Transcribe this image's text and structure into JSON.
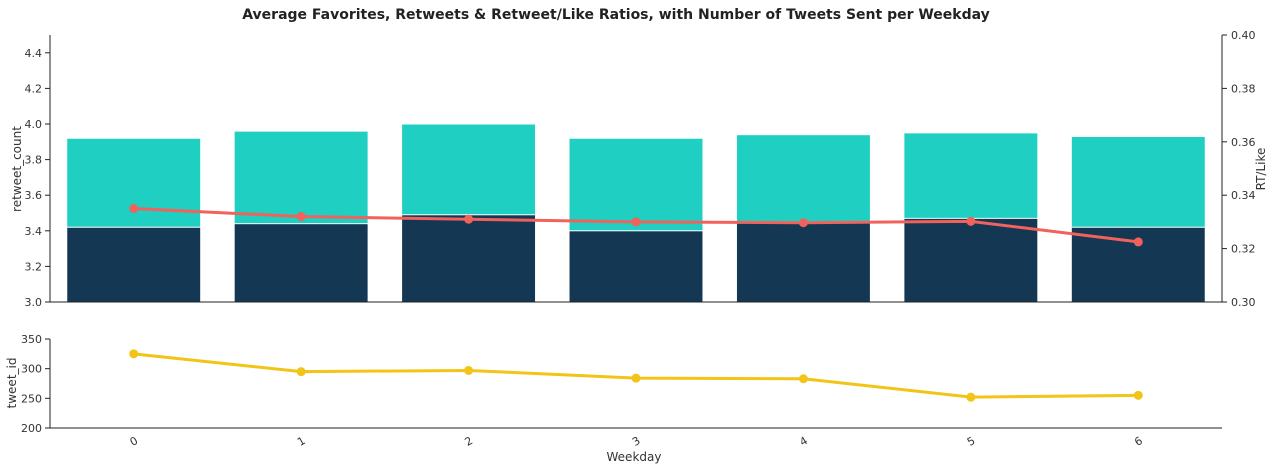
{
  "chart_data": [
    {
      "type": "bar",
      "title": "Average Favorites, Retweets & Retweet/Like Ratios, with Number of Tweets Sent per Weekday",
      "categories": [
        "0",
        "1",
        "2",
        "3",
        "4",
        "5",
        "6"
      ],
      "ylabel": "retweet_count",
      "ylim": [
        3.0,
        4.5
      ],
      "yticks": [
        "3.0",
        "3.2",
        "3.4",
        "3.6",
        "3.8",
        "4.0",
        "4.2",
        "4.4"
      ],
      "y2label": "RT/Like",
      "y2lim": [
        0.3,
        0.4
      ],
      "y2ticks": [
        "0.30",
        "0.32",
        "0.34",
        "0.36",
        "0.38",
        "0.40"
      ],
      "grid": false,
      "series": [
        {
          "kind": "bar",
          "axis": "left",
          "color": "#1ecfc2",
          "values": [
            3.92,
            3.96,
            4.0,
            3.92,
            3.94,
            3.95,
            3.93
          ]
        },
        {
          "kind": "bar",
          "axis": "left",
          "color": "#143753",
          "values": [
            3.42,
            3.44,
            3.49,
            3.4,
            3.45,
            3.47,
            3.42
          ]
        },
        {
          "kind": "line",
          "axis": "right",
          "color": "#f0625b",
          "values": [
            0.335,
            0.332,
            0.331,
            0.33,
            0.3297,
            0.3302,
            0.3225
          ]
        }
      ]
    },
    {
      "type": "line",
      "categories": [
        "0",
        "1",
        "2",
        "3",
        "4",
        "5",
        "6"
      ],
      "ylabel": "tweet_id",
      "xlabel": "Weekday",
      "ylim": [
        200,
        350
      ],
      "yticks": [
        "200",
        "250",
        "300",
        "350"
      ],
      "grid": false,
      "series": [
        {
          "color": "#f2c418",
          "values": [
            325,
            295,
            297,
            284,
            283,
            252,
            255
          ]
        }
      ]
    }
  ]
}
